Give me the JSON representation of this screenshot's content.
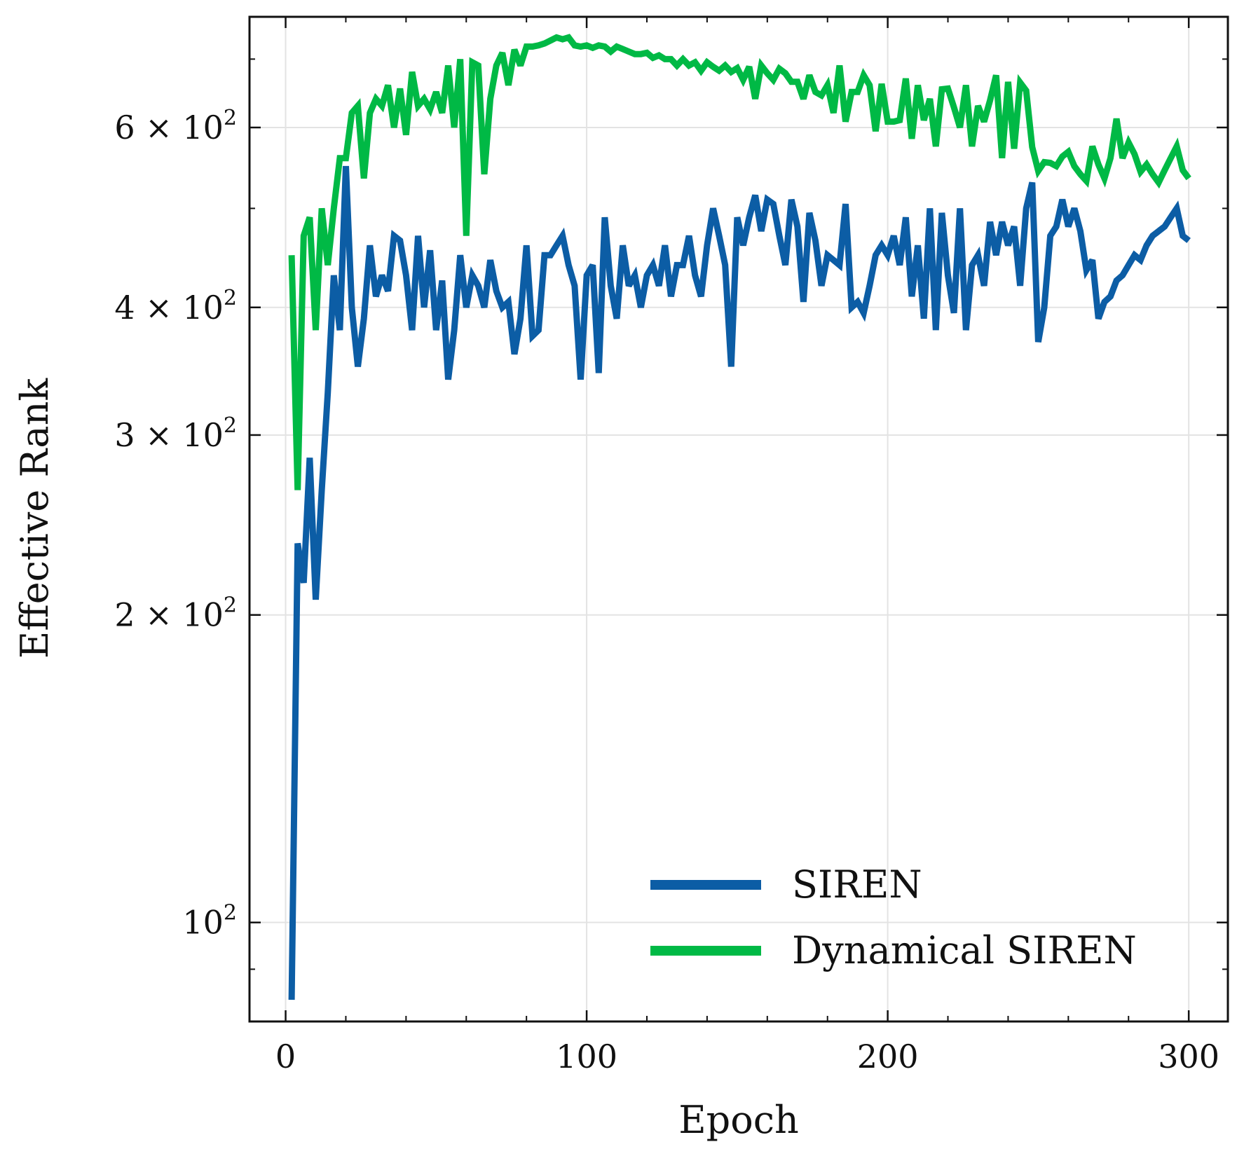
{
  "chart_data": {
    "type": "line",
    "xlabel": "Epoch",
    "ylabel": "Effective Rank",
    "xlim": [
      -12,
      313
    ],
    "ylim": [
      80,
      770
    ],
    "yscale": "log",
    "grid": true,
    "legend_position": "lower-right",
    "x_ticks": [
      0,
      100,
      200,
      300
    ],
    "x_tick_labels": [
      "0",
      "100",
      "200",
      "300"
    ],
    "y_ticks": [
      100,
      200,
      300,
      400,
      600
    ],
    "y_tick_labels": [
      {
        "coef": "",
        "base": "10",
        "exp": "2"
      },
      {
        "coef": "2 × ",
        "base": "10",
        "exp": "2"
      },
      {
        "coef": "3 × ",
        "base": "10",
        "exp": "2"
      },
      {
        "coef": "4 × ",
        "base": "10",
        "exp": "2"
      },
      {
        "coef": "6 × ",
        "base": "10",
        "exp": "2"
      }
    ],
    "y_minor_ticks": [
      90,
      500,
      700
    ],
    "series": [
      {
        "name": "SIREN",
        "color": "#0C5DA5",
        "x": [
          2,
          4,
          6,
          8,
          10,
          12,
          14,
          16,
          18,
          20,
          22,
          24,
          26,
          28,
          30,
          32,
          34,
          36,
          38,
          40,
          42,
          44,
          46,
          48,
          50,
          52,
          54,
          56,
          58,
          60,
          62,
          64,
          66,
          68,
          70,
          72,
          74,
          76,
          78,
          80,
          82,
          84,
          86,
          88,
          90,
          92,
          94,
          96,
          98,
          100,
          102,
          104,
          106,
          108,
          110,
          112,
          114,
          116,
          118,
          120,
          122,
          124,
          126,
          128,
          130,
          132,
          134,
          136,
          138,
          140,
          142,
          144,
          146,
          148,
          150,
          152,
          154,
          156,
          158,
          160,
          162,
          164,
          166,
          168,
          170,
          172,
          174,
          176,
          178,
          180,
          182,
          184,
          186,
          188,
          190,
          192,
          194,
          196,
          198,
          200,
          202,
          204,
          206,
          208,
          210,
          212,
          214,
          216,
          218,
          220,
          222,
          224,
          226,
          228,
          230,
          232,
          234,
          236,
          238,
          240,
          242,
          244,
          246,
          248,
          250,
          252,
          254,
          256,
          258,
          260,
          262,
          264,
          266,
          268,
          270,
          272,
          274,
          276,
          278,
          280,
          282,
          284,
          286,
          288,
          290,
          292,
          294,
          296,
          298,
          300
        ],
        "values": [
          84,
          235,
          215,
          285,
          207,
          265,
          330,
          430,
          380,
          550,
          400,
          350,
          390,
          460,
          410,
          430,
          415,
          470,
          465,
          430,
          380,
          470,
          400,
          455,
          380,
          425,
          340,
          380,
          450,
          400,
          430,
          420,
          400,
          445,
          415,
          400,
          405,
          360,
          390,
          460,
          375,
          380,
          450,
          450,
          460,
          470,
          440,
          420,
          340,
          430,
          440,
          345,
          490,
          420,
          390,
          460,
          420,
          430,
          400,
          430,
          440,
          420,
          460,
          410,
          440,
          440,
          470,
          430,
          410,
          460,
          500,
          470,
          440,
          350,
          490,
          460,
          490,
          515,
          475,
          510,
          505,
          470,
          440,
          510,
          480,
          405,
          495,
          465,
          420,
          450,
          445,
          440,
          505,
          400,
          405,
          395,
          420,
          450,
          460,
          450,
          470,
          440,
          490,
          410,
          460,
          390,
          500,
          380,
          495,
          430,
          395,
          500,
          380,
          440,
          450,
          420,
          485,
          450,
          485,
          460,
          480,
          420,
          500,
          530,
          370,
          400,
          470,
          480,
          510,
          480,
          500,
          475,
          435,
          445,
          390,
          405,
          410,
          425,
          430,
          440,
          450,
          445,
          460,
          470,
          475,
          480,
          490,
          500,
          470,
          465
        ]
      },
      {
        "name": "Dynamical SIREN",
        "color": "#00B945",
        "x": [
          2,
          4,
          6,
          8,
          10,
          12,
          14,
          16,
          18,
          20,
          22,
          24,
          26,
          28,
          30,
          32,
          34,
          36,
          38,
          40,
          42,
          44,
          46,
          48,
          50,
          52,
          54,
          56,
          58,
          60,
          62,
          64,
          66,
          68,
          70,
          72,
          74,
          76,
          78,
          80,
          82,
          84,
          86,
          88,
          90,
          92,
          94,
          96,
          98,
          100,
          102,
          104,
          106,
          108,
          110,
          112,
          114,
          116,
          118,
          120,
          122,
          124,
          126,
          128,
          130,
          132,
          134,
          136,
          138,
          140,
          142,
          144,
          146,
          148,
          150,
          152,
          154,
          156,
          158,
          160,
          162,
          164,
          166,
          168,
          170,
          172,
          174,
          176,
          178,
          180,
          182,
          184,
          186,
          188,
          190,
          192,
          194,
          196,
          198,
          200,
          202,
          204,
          206,
          208,
          210,
          212,
          214,
          216,
          218,
          220,
          222,
          224,
          226,
          228,
          230,
          232,
          234,
          236,
          238,
          240,
          242,
          244,
          246,
          248,
          250,
          252,
          254,
          256,
          258,
          260,
          262,
          264,
          266,
          268,
          270,
          272,
          274,
          276,
          278,
          280,
          282,
          284,
          286,
          288,
          290,
          292,
          294,
          296,
          298,
          300
        ],
        "values": [
          450,
          265,
          470,
          490,
          380,
          500,
          440,
          500,
          560,
          560,
          620,
          630,
          535,
          620,
          640,
          630,
          660,
          600,
          655,
          590,
          680,
          630,
          640,
          625,
          650,
          620,
          690,
          600,
          700,
          470,
          695,
          690,
          540,
          640,
          690,
          710,
          660,
          715,
          690,
          720,
          720,
          722,
          725,
          730,
          735,
          732,
          735,
          722,
          720,
          722,
          718,
          722,
          720,
          712,
          720,
          716,
          712,
          708,
          708,
          710,
          702,
          706,
          700,
          700,
          690,
          700,
          690,
          695,
          682,
          695,
          688,
          682,
          690,
          680,
          686,
          668,
          688,
          640,
          690,
          678,
          668,
          685,
          678,
          665,
          665,
          640,
          675,
          650,
          645,
          660,
          620,
          690,
          608,
          650,
          650,
          675,
          660,
          595,
          662,
          608,
          608,
          610,
          670,
          585,
          660,
          610,
          640,
          575,
          654,
          655,
          628,
          600,
          660,
          575,
          630,
          608,
          638,
          675,
          560,
          665,
          572,
          664,
          652,
          574,
          544,
          555,
          554,
          550,
          562,
          568,
          550,
          540,
          532,
          575,
          552,
          535,
          560,
          612,
          560,
          580,
          565,
          543,
          552,
          540,
          530,
          545,
          560,
          575,
          545,
          535
        ]
      }
    ]
  }
}
